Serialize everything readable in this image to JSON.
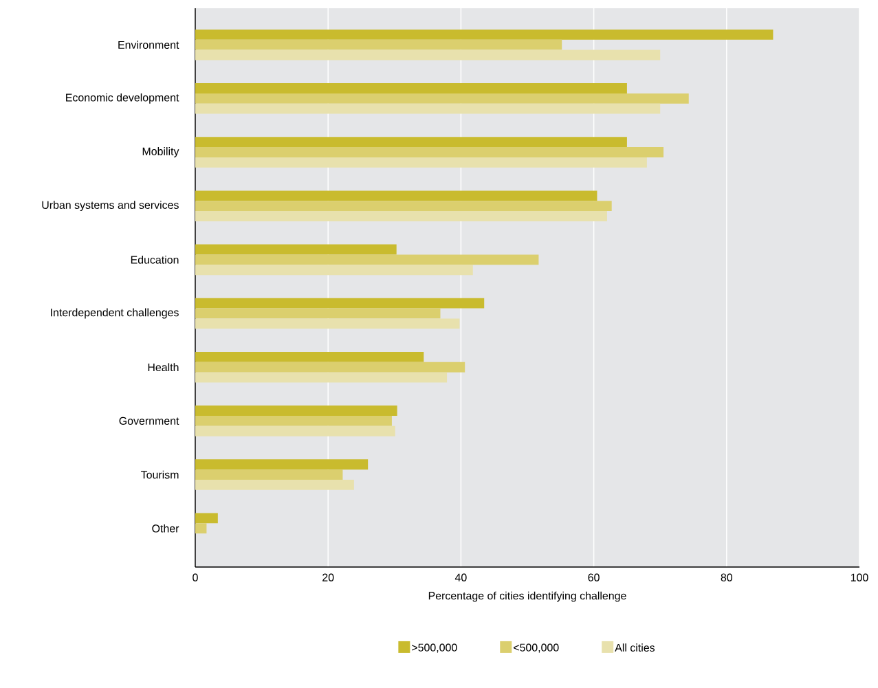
{
  "chart_data": {
    "type": "bar",
    "orientation": "horizontal",
    "xlabel": "Percentage of cities identifying challenge",
    "categories": [
      "Environment",
      "Economic development",
      "Mobility",
      "Urban systems and services",
      "Education",
      "Interdependent challenges",
      "Health",
      "Government",
      "Tourism",
      "Other"
    ],
    "series": [
      {
        "name": ">500,000",
        "color": "#c9bb2e",
        "values": [
          87,
          65,
          65,
          60.5,
          30.3,
          43.5,
          34.4,
          30.4,
          26,
          3.4
        ]
      },
      {
        "name": "<500,000",
        "color": "#dbcf6e",
        "values": [
          55.2,
          74.3,
          70.5,
          62.7,
          51.7,
          36.9,
          40.6,
          29.6,
          22.2,
          1.7
        ]
      },
      {
        "name": "All cities",
        "color": "#e8e1ad",
        "values": [
          70,
          70,
          68,
          62,
          41.8,
          39.8,
          37.9,
          30.1,
          23.9,
          null
        ]
      }
    ],
    "xlim": [
      0,
      100
    ],
    "xticks": [
      0,
      20,
      40,
      60,
      80,
      100
    ],
    "grid": "x",
    "legend": "bottom"
  }
}
